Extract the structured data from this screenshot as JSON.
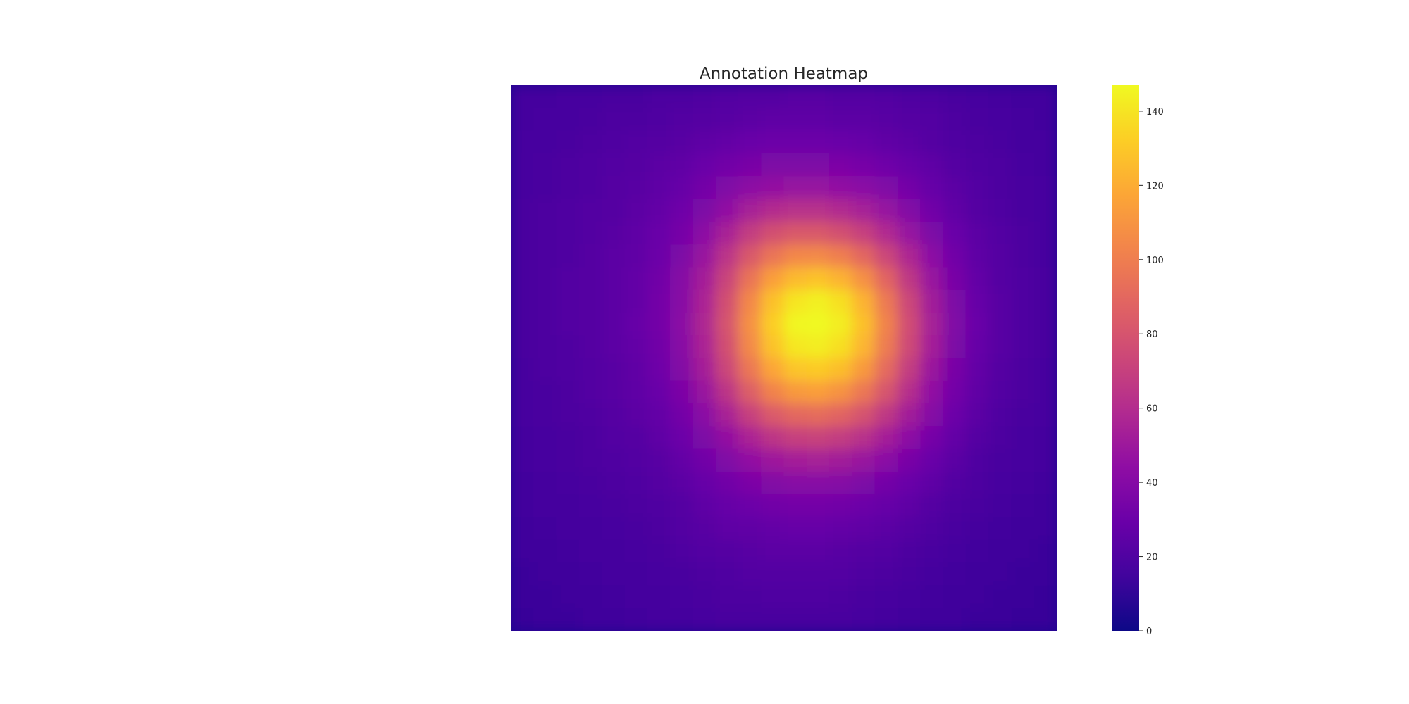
{
  "chart_data": {
    "type": "heatmap",
    "title": "Annotation Heatmap",
    "xlabel": "",
    "ylabel": "",
    "colormap": "plasma",
    "value_range": [
      0,
      147
    ],
    "colorbar": {
      "ticks": [
        0,
        20,
        40,
        60,
        80,
        100,
        120,
        140
      ],
      "tick_labels": [
        "0",
        "20",
        "40",
        "60",
        "80",
        "100",
        "120",
        "140"
      ]
    },
    "grid": false,
    "axes_ticks_visible": false,
    "grid_size": [
      24,
      24
    ],
    "values": [
      [
        16,
        16,
        17,
        17,
        18,
        18,
        19,
        19,
        20,
        21,
        22,
        22,
        23,
        23,
        22,
        22,
        21,
        20,
        19,
        18,
        17,
        16,
        15,
        15
      ],
      [
        16,
        17,
        17,
        18,
        19,
        19,
        20,
        21,
        22,
        23,
        24,
        25,
        25,
        25,
        24,
        24,
        23,
        22,
        21,
        19,
        18,
        17,
        16,
        15
      ],
      [
        17,
        17,
        18,
        19,
        20,
        21,
        22,
        23,
        25,
        27,
        29,
        30,
        30,
        30,
        29,
        28,
        26,
        24,
        22,
        20,
        19,
        18,
        16,
        16
      ],
      [
        17,
        18,
        19,
        20,
        21,
        22,
        24,
        26,
        29,
        32,
        35,
        37,
        37,
        37,
        36,
        34,
        31,
        28,
        25,
        22,
        20,
        19,
        17,
        16
      ],
      [
        17,
        18,
        19,
        20,
        22,
        23,
        25,
        28,
        33,
        38,
        43,
        46,
        47,
        47,
        45,
        42,
        38,
        33,
        28,
        24,
        21,
        19,
        18,
        17
      ],
      [
        18,
        19,
        20,
        21,
        22,
        24,
        27,
        31,
        37,
        45,
        54,
        60,
        62,
        62,
        59,
        54,
        47,
        39,
        32,
        26,
        22,
        20,
        18,
        17
      ],
      [
        18,
        19,
        20,
        21,
        23,
        25,
        29,
        34,
        43,
        55,
        68,
        78,
        82,
        82,
        78,
        70,
        59,
        47,
        37,
        29,
        24,
        21,
        19,
        17
      ],
      [
        18,
        19,
        20,
        22,
        24,
        26,
        30,
        37,
        48,
        64,
        82,
        96,
        104,
        105,
        100,
        89,
        73,
        57,
        43,
        32,
        25,
        22,
        19,
        17
      ],
      [
        18,
        19,
        21,
        22,
        24,
        27,
        32,
        40,
        53,
        72,
        95,
        114,
        125,
        128,
        122,
        108,
        88,
        66,
        48,
        35,
        27,
        22,
        20,
        18
      ],
      [
        18,
        19,
        21,
        22,
        24,
        27,
        33,
        41,
        56,
        78,
        104,
        127,
        140,
        144,
        138,
        122,
        98,
        73,
        52,
        37,
        28,
        23,
        20,
        18
      ],
      [
        18,
        19,
        21,
        22,
        24,
        28,
        33,
        42,
        57,
        80,
        108,
        132,
        146,
        147,
        143,
        127,
        102,
        76,
        54,
        38,
        29,
        23,
        20,
        18
      ],
      [
        18,
        19,
        20,
        22,
        24,
        27,
        32,
        41,
        56,
        78,
        105,
        128,
        141,
        143,
        138,
        123,
        99,
        74,
        53,
        37,
        28,
        23,
        20,
        18
      ],
      [
        17,
        19,
        20,
        21,
        23,
        26,
        31,
        39,
        53,
        73,
        97,
        117,
        129,
        131,
        126,
        112,
        91,
        68,
        49,
        35,
        27,
        22,
        19,
        17
      ],
      [
        17,
        18,
        19,
        21,
        23,
        25,
        29,
        36,
        48,
        65,
        85,
        102,
        112,
        114,
        109,
        97,
        80,
        61,
        45,
        33,
        26,
        21,
        19,
        17
      ],
      [
        17,
        18,
        19,
        20,
        22,
        24,
        27,
        33,
        42,
        55,
        70,
        83,
        90,
        92,
        88,
        79,
        66,
        52,
        40,
        30,
        24,
        20,
        18,
        17
      ],
      [
        16,
        17,
        18,
        19,
        21,
        22,
        25,
        30,
        37,
        46,
        56,
        65,
        70,
        71,
        68,
        62,
        53,
        43,
        34,
        27,
        22,
        19,
        17,
        16
      ],
      [
        16,
        17,
        18,
        19,
        20,
        21,
        23,
        27,
        32,
        38,
        45,
        50,
        53,
        54,
        52,
        48,
        42,
        35,
        29,
        24,
        20,
        18,
        17,
        16
      ],
      [
        15,
        16,
        17,
        18,
        19,
        20,
        22,
        24,
        28,
        32,
        36,
        39,
        41,
        41,
        40,
        37,
        33,
        29,
        25,
        21,
        19,
        17,
        16,
        15
      ],
      [
        15,
        16,
        16,
        17,
        18,
        19,
        20,
        22,
        25,
        28,
        30,
        32,
        33,
        33,
        32,
        30,
        28,
        25,
        22,
        19,
        18,
        16,
        15,
        14
      ],
      [
        14,
        15,
        16,
        16,
        17,
        18,
        19,
        21,
        23,
        25,
        26,
        27,
        28,
        28,
        27,
        26,
        24,
        22,
        20,
        18,
        16,
        15,
        14,
        14
      ],
      [
        14,
        14,
        15,
        16,
        16,
        17,
        18,
        20,
        21,
        22,
        23,
        24,
        24,
        24,
        23,
        22,
        21,
        19,
        18,
        16,
        15,
        14,
        14,
        13
      ],
      [
        13,
        14,
        14,
        15,
        16,
        16,
        17,
        18,
        19,
        20,
        21,
        21,
        21,
        21,
        21,
        20,
        19,
        18,
        16,
        15,
        14,
        14,
        13,
        13
      ],
      [
        13,
        13,
        14,
        14,
        15,
        16,
        16,
        17,
        18,
        19,
        19,
        20,
        20,
        20,
        19,
        18,
        17,
        16,
        15,
        14,
        14,
        13,
        13,
        12
      ],
      [
        12,
        13,
        13,
        14,
        14,
        15,
        16,
        16,
        17,
        18,
        18,
        18,
        18,
        18,
        18,
        17,
        16,
        15,
        14,
        14,
        13,
        13,
        12,
        12
      ]
    ]
  }
}
